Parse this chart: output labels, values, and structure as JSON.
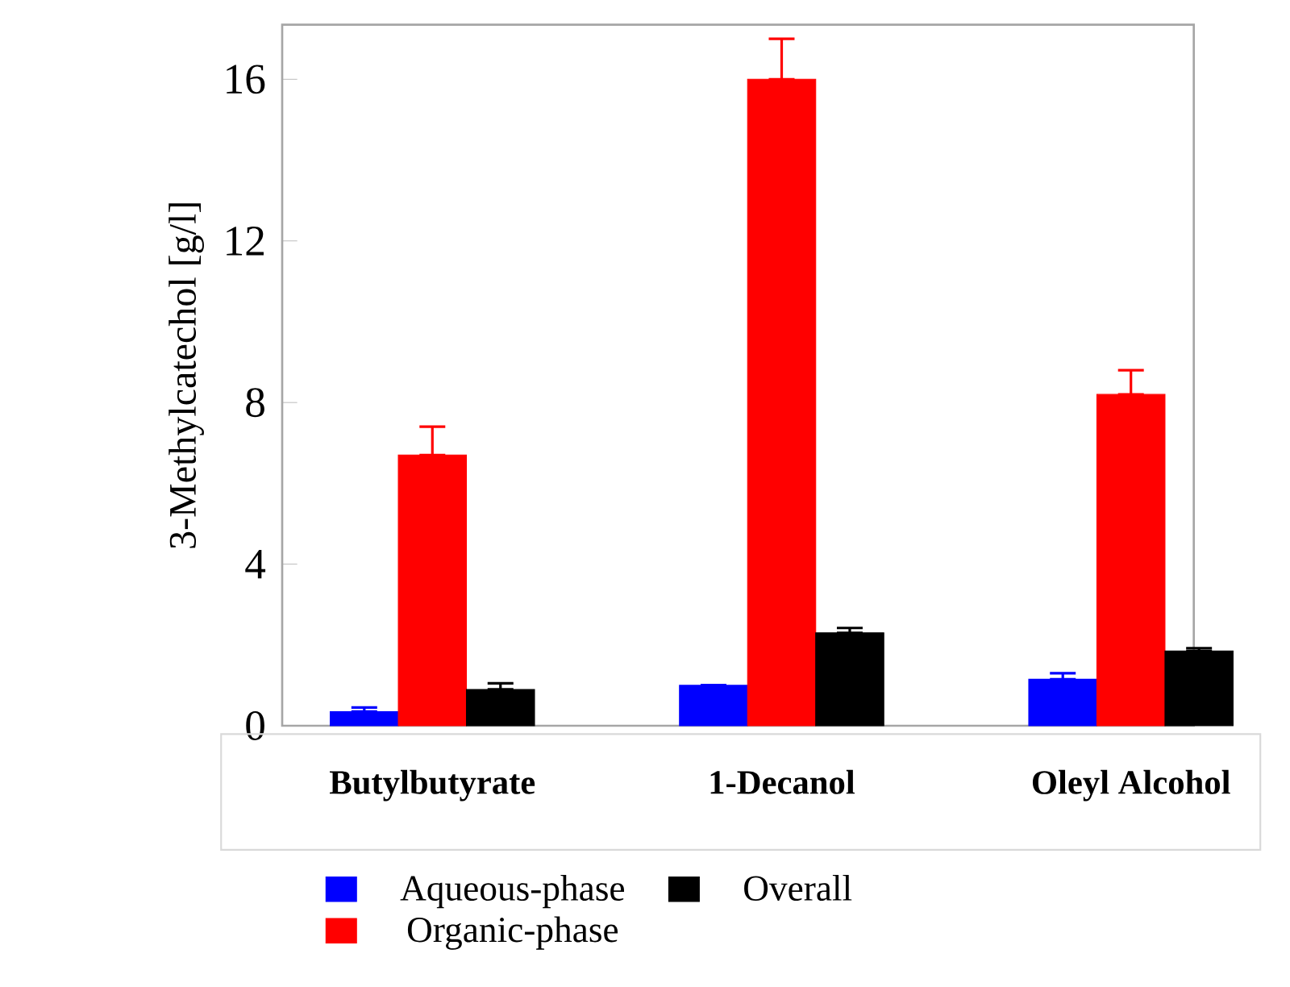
{
  "chart_data": {
    "type": "bar",
    "ylabel": "3-Methylcatechol [g/l]",
    "categories": [
      "Butylbutyrate",
      "1-Decanol",
      "Oleyl Alcohol"
    ],
    "series": [
      {
        "name": "Aqueous-phase",
        "color": "#0000ff",
        "values": [
          0.35,
          1.0,
          1.15
        ],
        "errors": [
          [
            0.35,
            0.45
          ],
          null,
          [
            1.15,
            1.3
          ]
        ]
      },
      {
        "name": "Organic-phase",
        "color": "#ff0000",
        "values": [
          6.7,
          16.0,
          8.2
        ],
        "errors": [
          [
            6.7,
            7.4
          ],
          [
            16.0,
            17.0
          ],
          [
            8.2,
            8.8
          ]
        ]
      },
      {
        "name": "Overall",
        "color": "#000000",
        "values": [
          0.9,
          2.3,
          1.85
        ],
        "errors": [
          [
            0.9,
            1.05
          ],
          [
            2.3,
            2.42
          ],
          [
            1.85,
            1.92
          ]
        ]
      }
    ],
    "ylim": [
      0,
      17.35
    ],
    "yticks": [
      0,
      4,
      8,
      12,
      16
    ],
    "grid": false,
    "legend": "bottom"
  }
}
